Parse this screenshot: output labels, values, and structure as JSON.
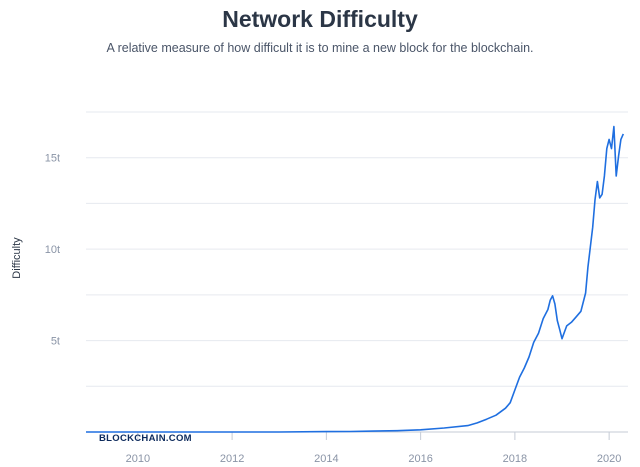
{
  "header": {
    "title": "Network Difficulty",
    "subtitle": "A relative measure of how difficult it is to mine a new block for the blockchain."
  },
  "watermark": "BLOCKCHAIN.COM",
  "colors": {
    "line": "#1f6fe0",
    "grid": "#e6e9ef",
    "title": "#2b3646"
  },
  "chart_data": {
    "type": "line",
    "title": "Network Difficulty",
    "ylabel": "Difficulty",
    "xlabel": "",
    "x_ticks": [
      "2010",
      "2012",
      "2014",
      "2016",
      "2018",
      "2020"
    ],
    "y_ticks": [
      "5t",
      "10t",
      "15t"
    ],
    "xlim": [
      2008.9,
      2020.4
    ],
    "ylim": [
      0,
      17.5
    ],
    "grid": true,
    "series": [
      {
        "x": [
          2008.9,
          2010.0,
          2011.0,
          2012.0,
          2013.0,
          2014.0,
          2014.5,
          2015.0,
          2015.5,
          2016.0,
          2016.5,
          2017.0,
          2017.2,
          2017.4,
          2017.6,
          2017.8,
          2017.9,
          2018.0,
          2018.1,
          2018.2,
          2018.3,
          2018.4,
          2018.5,
          2018.6,
          2018.7,
          2018.75,
          2018.8,
          2018.85,
          2018.9,
          2018.95,
          2019.0,
          2019.1,
          2019.2,
          2019.3,
          2019.4,
          2019.5,
          2019.55,
          2019.6,
          2019.65,
          2019.7,
          2019.75,
          2019.8,
          2019.85,
          2019.9,
          2019.95,
          2020.0,
          2020.05,
          2020.1,
          2020.15,
          2020.2,
          2020.25,
          2020.3
        ],
        "y": [
          0.0,
          0.0,
          0.0,
          0.0,
          0.0,
          0.02,
          0.03,
          0.05,
          0.07,
          0.12,
          0.22,
          0.35,
          0.5,
          0.7,
          0.92,
          1.3,
          1.6,
          2.3,
          3.0,
          3.5,
          4.1,
          4.9,
          5.4,
          6.2,
          6.7,
          7.2,
          7.45,
          7.0,
          6.1,
          5.6,
          5.1,
          5.8,
          6.0,
          6.3,
          6.6,
          7.6,
          9.0,
          10.1,
          11.2,
          12.7,
          13.7,
          12.8,
          13.0,
          14.0,
          15.5,
          16.0,
          15.5,
          16.7,
          14.0,
          15.1,
          16.0,
          16.3
        ]
      }
    ]
  }
}
